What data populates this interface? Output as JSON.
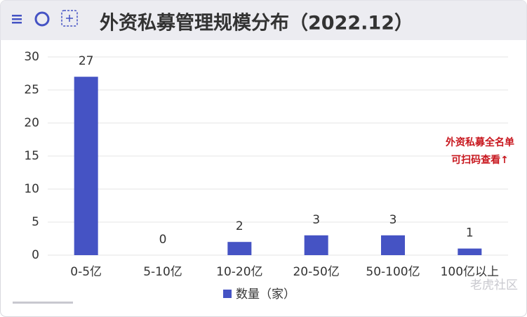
{
  "chart_data": {
    "type": "bar",
    "title": "外资私募管理规模分布（2022.12）",
    "categories": [
      "0-5亿",
      "5-10亿",
      "10-20亿",
      "20-50亿",
      "50-100亿",
      "100亿以上"
    ],
    "series": [
      {
        "name": "数量（家）",
        "color": "#4553c4",
        "values": [
          27,
          0,
          2,
          3,
          3,
          1
        ]
      }
    ],
    "ylim": [
      0,
      30
    ],
    "yticks": [
      0,
      5,
      10,
      15,
      20,
      25,
      30
    ],
    "grid": true,
    "annotations": [
      "外资私募全名单",
      "可扫码查看↑"
    ],
    "watermark": "老虎社区"
  }
}
